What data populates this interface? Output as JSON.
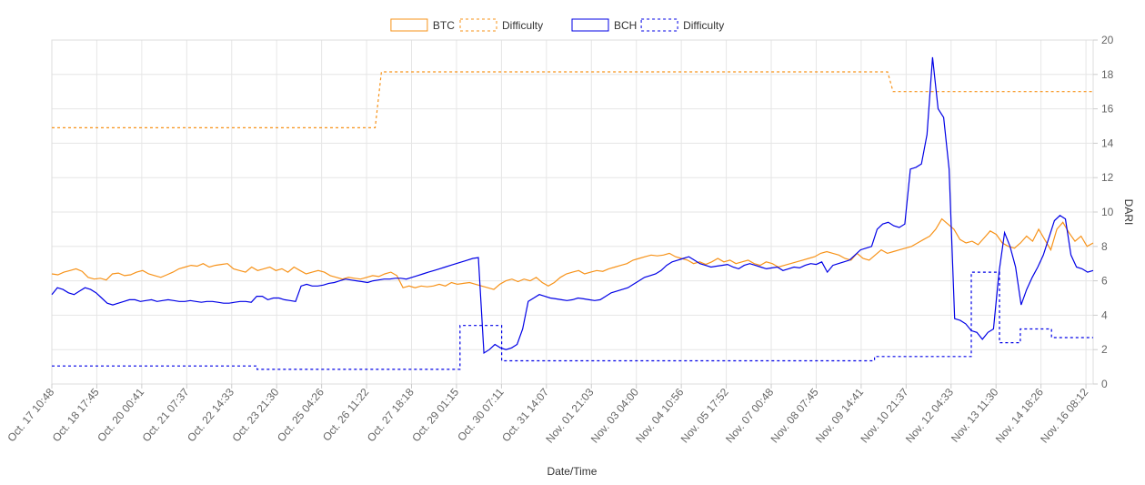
{
  "chart_data": {
    "type": "line",
    "xlabel": "Date/Time",
    "ylabel": "DARI",
    "ylim": [
      0,
      20
    ],
    "yticks": [
      0,
      2,
      4,
      6,
      8,
      10,
      12,
      14,
      16,
      18,
      20
    ],
    "grid": true,
    "legend_position": "top",
    "x_tick_labels": [
      "Oct. 17 10:48",
      "Oct. 18 17:45",
      "Oct. 20 00:41",
      "Oct. 21 07:37",
      "Oct. 22 14:33",
      "Oct. 23 21:30",
      "Oct. 25 04:26",
      "Oct. 26 11:22",
      "Oct. 27 18:18",
      "Oct. 29 01:15",
      "Oct. 30 07:11",
      "Oct. 31 14:07",
      "Nov. 01 21:03",
      "Nov. 03 04:00",
      "Nov. 04 10:56",
      "Nov. 05 17:52",
      "Nov. 07 00:48",
      "Nov. 08 07:45",
      "Nov. 09 14:41",
      "Nov. 10 21:37",
      "Nov. 12 04:33",
      "Nov. 13 11:30",
      "Nov. 14 18:26",
      "Nov. 16 08:12"
    ],
    "series": [
      {
        "name": "BTC",
        "color": "#f7931a",
        "dash": "solid",
        "values": [
          6.4,
          6.35,
          6.5,
          6.6,
          6.7,
          6.55,
          6.2,
          6.1,
          6.15,
          6.05,
          6.4,
          6.45,
          6.3,
          6.35,
          6.5,
          6.6,
          6.4,
          6.3,
          6.2,
          6.35,
          6.5,
          6.7,
          6.8,
          6.9,
          6.85,
          7.0,
          6.8,
          6.9,
          6.95,
          7.0,
          6.7,
          6.6,
          6.5,
          6.8,
          6.6,
          6.7,
          6.8,
          6.6,
          6.7,
          6.5,
          6.8,
          6.6,
          6.4,
          6.5,
          6.6,
          6.5,
          6.3,
          6.2,
          6.1,
          6.2,
          6.15,
          6.1,
          6.2,
          6.3,
          6.25,
          6.4,
          6.5,
          6.3,
          5.6,
          5.7,
          5.6,
          5.7,
          5.65,
          5.7,
          5.8,
          5.7,
          5.9,
          5.8,
          5.85,
          5.9,
          5.8,
          5.7,
          5.6,
          5.5,
          5.8,
          6.0,
          6.1,
          5.95,
          6.1,
          6.0,
          6.2,
          5.9,
          5.7,
          5.9,
          6.2,
          6.4,
          6.5,
          6.6,
          6.4,
          6.5,
          6.6,
          6.55,
          6.7,
          6.8,
          6.9,
          7.0,
          7.2,
          7.3,
          7.4,
          7.5,
          7.45,
          7.5,
          7.6,
          7.4,
          7.3,
          7.2,
          7.0,
          7.1,
          6.95,
          7.1,
          7.3,
          7.1,
          7.2,
          7.0,
          7.1,
          7.2,
          7.0,
          6.9,
          7.1,
          7.0,
          6.8,
          6.9,
          7.0,
          7.1,
          7.2,
          7.3,
          7.4,
          7.6,
          7.7,
          7.6,
          7.5,
          7.3,
          7.2,
          7.6,
          7.3,
          7.2,
          7.5,
          7.8,
          7.6,
          7.7,
          7.8,
          7.9,
          8.0,
          8.2,
          8.4,
          8.6,
          9.0,
          9.6,
          9.3,
          9.0,
          8.4,
          8.2,
          8.3,
          8.1,
          8.5,
          8.9,
          8.7,
          8.2,
          8.0,
          7.9,
          8.2,
          8.6,
          8.3,
          9.0,
          8.4,
          7.8,
          9.0,
          9.4,
          8.8,
          8.3,
          8.6,
          8.0,
          8.2
        ]
      },
      {
        "name": "Difficulty",
        "color": "#f7931a",
        "dash": "dashed",
        "segments": [
          {
            "from": 0,
            "to": 0.3105,
            "value": 14.9
          },
          {
            "from": 0.3165,
            "to": 0.8026,
            "value": 18.15
          },
          {
            "from": 0.8079,
            "to": 1.0,
            "value": 17.0
          }
        ]
      },
      {
        "name": "BCH",
        "color": "#0000e6",
        "dash": "solid",
        "values": [
          5.2,
          5.6,
          5.5,
          5.3,
          5.2,
          5.4,
          5.6,
          5.5,
          5.3,
          5.0,
          4.7,
          4.6,
          4.7,
          4.8,
          4.9,
          4.9,
          4.8,
          4.85,
          4.9,
          4.8,
          4.85,
          4.9,
          4.85,
          4.8,
          4.8,
          4.85,
          4.8,
          4.75,
          4.8,
          4.8,
          4.75,
          4.7,
          4.7,
          4.75,
          4.8,
          4.8,
          4.75,
          5.1,
          5.1,
          4.9,
          5.0,
          5.0,
          4.9,
          4.85,
          4.8,
          5.7,
          5.8,
          5.7,
          5.7,
          5.75,
          5.85,
          5.9,
          6.0,
          6.1,
          6.05,
          6.0,
          5.95,
          5.9,
          6.0,
          6.05,
          6.1,
          6.1,
          6.15,
          6.15,
          6.1,
          6.2,
          6.3,
          6.4,
          6.5,
          6.6,
          6.7,
          6.8,
          6.9,
          7.0,
          7.1,
          7.2,
          7.3,
          7.35,
          1.8,
          2.0,
          2.3,
          2.1,
          2.0,
          2.1,
          2.3,
          3.2,
          4.8,
          5.0,
          5.2,
          5.1,
          5.0,
          4.95,
          4.9,
          4.85,
          4.9,
          5.0,
          4.95,
          4.9,
          4.85,
          4.9,
          5.1,
          5.3,
          5.4,
          5.5,
          5.6,
          5.8,
          6.0,
          6.2,
          6.3,
          6.4,
          6.6,
          6.9,
          7.1,
          7.2,
          7.3,
          7.4,
          7.2,
          7.0,
          6.9,
          6.8,
          6.85,
          6.9,
          6.95,
          6.8,
          6.7,
          6.9,
          7.0,
          6.9,
          6.8,
          6.7,
          6.75,
          6.8,
          6.6,
          6.7,
          6.8,
          6.75,
          6.9,
          7.0,
          6.95,
          7.1,
          6.5,
          6.9,
          7.0,
          7.1,
          7.2,
          7.5,
          7.8,
          7.9,
          8.0,
          9.0,
          9.3,
          9.4,
          9.2,
          9.1,
          9.3,
          12.5,
          12.6,
          12.8,
          14.5,
          19.0,
          16.0,
          15.5,
          12.5,
          3.8,
          3.7,
          3.5,
          3.1,
          3.0,
          2.6,
          3.0,
          3.2,
          6.5,
          8.8,
          8.0,
          6.8,
          4.6,
          5.5,
          6.2,
          6.8,
          7.5,
          8.5,
          9.5,
          9.8,
          9.6,
          7.5,
          6.8,
          6.7,
          6.5,
          6.6
        ]
      },
      {
        "name": "Difficulty",
        "color": "#0000e6",
        "dash": "dashed",
        "segments": [
          {
            "from": 0,
            "to": 0.197,
            "value": 1.05
          },
          {
            "from": 0.197,
            "to": 0.392,
            "value": 0.85
          },
          {
            "from": 0.392,
            "to": 0.432,
            "value": 3.4
          },
          {
            "from": 0.432,
            "to": 0.79,
            "value": 1.35
          },
          {
            "from": 0.79,
            "to": 0.883,
            "value": 1.6
          },
          {
            "from": 0.883,
            "to": 0.91,
            "value": 6.5
          },
          {
            "from": 0.91,
            "to": 0.93,
            "value": 2.4
          },
          {
            "from": 0.93,
            "to": 0.96,
            "value": 3.2
          },
          {
            "from": 0.96,
            "to": 1.0,
            "value": 2.7
          }
        ]
      }
    ]
  }
}
